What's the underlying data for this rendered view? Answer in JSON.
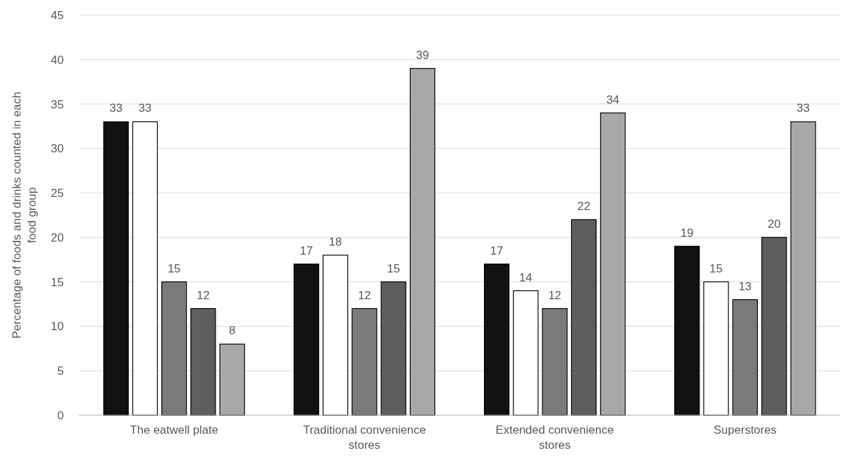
{
  "chart_data": {
    "type": "bar",
    "ylabel": "Percentage of foods and drinks counted in each food group",
    "categories": [
      "The eatwell plate",
      "Traditional convenience stores",
      "Extended convenience stores",
      "Superstores"
    ],
    "series": [
      {
        "color": "#111111",
        "values": [
          33,
          17,
          17,
          19
        ]
      },
      {
        "color": "#ffffff",
        "values": [
          33,
          18,
          14,
          15
        ]
      },
      {
        "color": "#7a7a7a",
        "values": [
          15,
          12,
          12,
          13
        ]
      },
      {
        "color": "#5e5e5e",
        "values": [
          12,
          15,
          22,
          20
        ]
      },
      {
        "color": "#a8a8a8",
        "values": [
          8,
          39,
          34,
          33
        ]
      }
    ],
    "ylim": [
      0,
      45
    ],
    "yticks": [
      0,
      5,
      10,
      15,
      20,
      25,
      30,
      35,
      40,
      45
    ],
    "grid": "y",
    "data_labels": true
  }
}
